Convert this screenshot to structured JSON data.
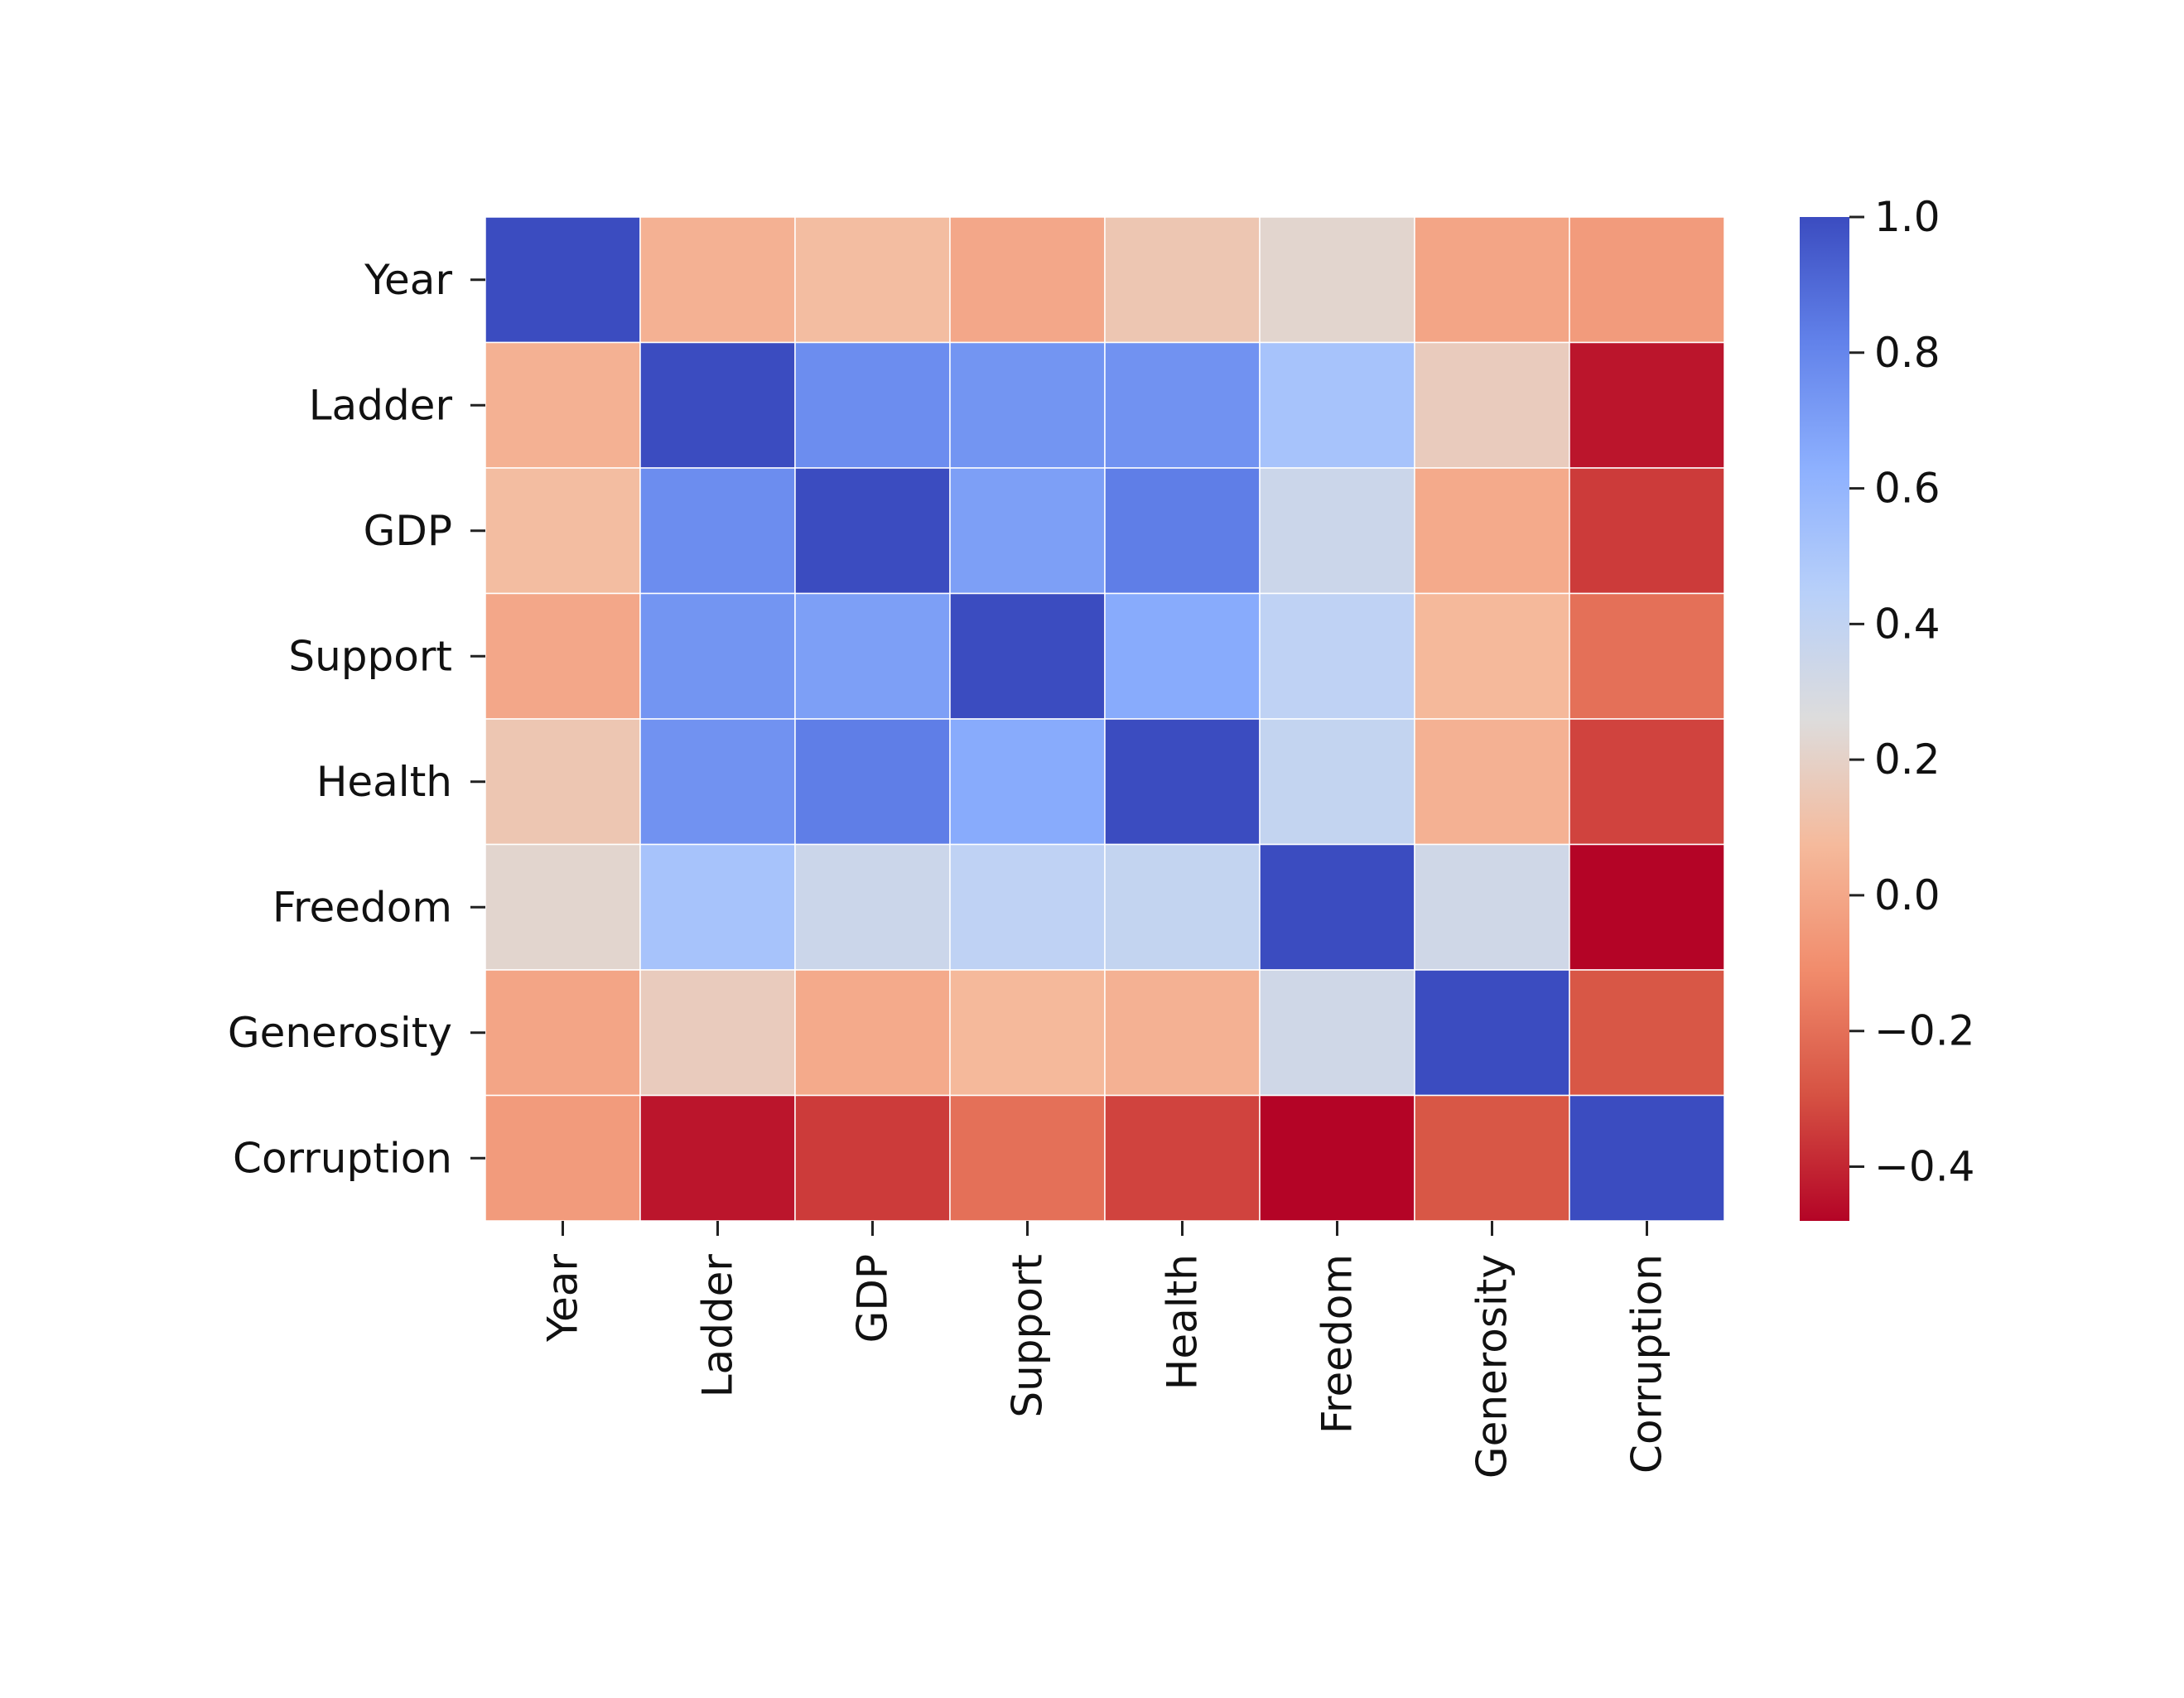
{
  "chart_data": {
    "type": "heatmap",
    "title": "",
    "xlabel": "",
    "ylabel": "",
    "variables": [
      "Year",
      "Ladder",
      "GDP",
      "Support",
      "Health",
      "Freedom",
      "Generosity",
      "Corruption"
    ],
    "matrix": [
      [
        1.0,
        0.04,
        0.09,
        0.0,
        0.14,
        0.22,
        -0.01,
        -0.05
      ],
      [
        0.04,
        1.0,
        0.77,
        0.74,
        0.75,
        0.52,
        0.17,
        -0.44
      ],
      [
        0.09,
        0.77,
        1.0,
        0.7,
        0.83,
        0.35,
        0.01,
        -0.35
      ],
      [
        0.0,
        0.74,
        0.7,
        1.0,
        0.65,
        0.41,
        0.07,
        -0.2
      ],
      [
        0.14,
        0.75,
        0.83,
        0.65,
        1.0,
        0.39,
        0.04,
        -0.33
      ],
      [
        0.22,
        0.52,
        0.35,
        0.41,
        0.39,
        1.0,
        0.33,
        -0.48
      ],
      [
        -0.01,
        0.17,
        0.01,
        0.07,
        0.04,
        0.33,
        1.0,
        -0.28
      ],
      [
        -0.05,
        -0.44,
        -0.35,
        -0.2,
        -0.33,
        -0.48,
        -0.28,
        1.0
      ]
    ],
    "colorbar": {
      "colormap": "coolwarm_r",
      "vmin": -0.48,
      "vmax": 1.0,
      "ticks": [
        1.0,
        0.8,
        0.6,
        0.4,
        0.2,
        0.0,
        -0.2,
        -0.4
      ],
      "tick_labels": [
        "1.0",
        "0.8",
        "0.6",
        "0.4",
        "0.2",
        "0.0",
        "−0.2",
        "−0.4"
      ]
    },
    "grid": "white cell borders",
    "legend": "colorbar right"
  }
}
